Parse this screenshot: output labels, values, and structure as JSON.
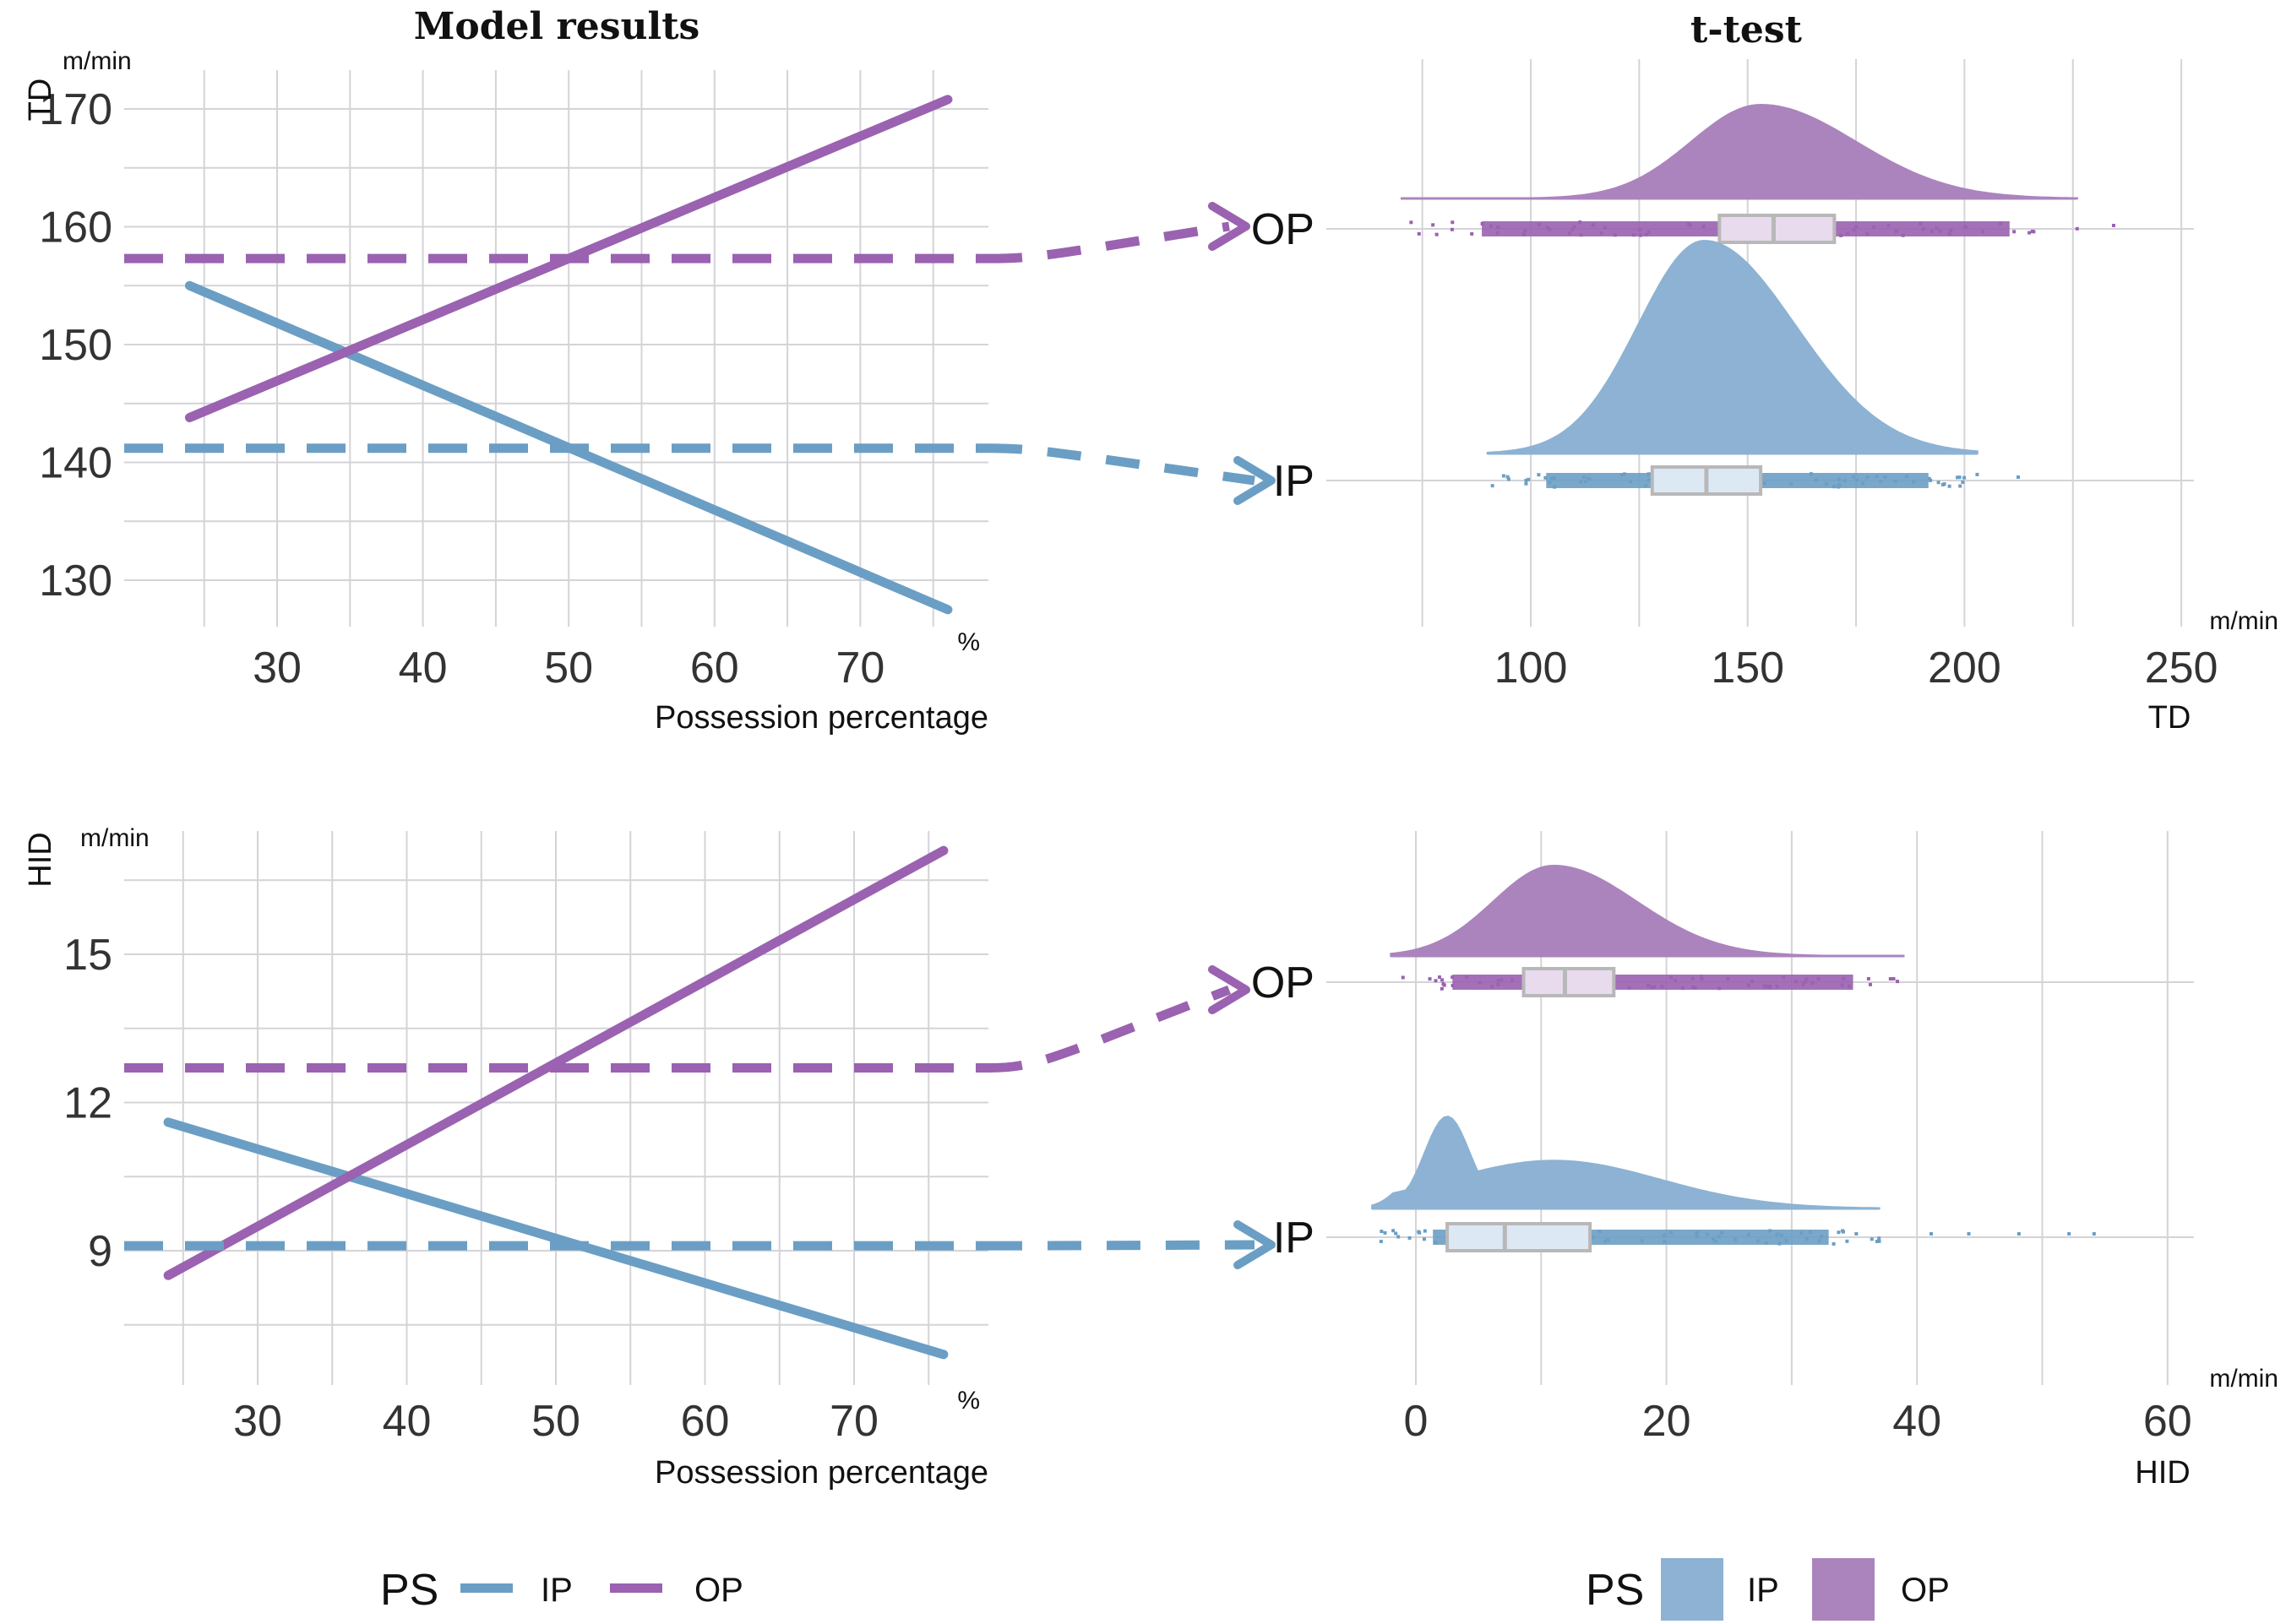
{
  "colors": {
    "IP": "#6b9ec4",
    "OP": "#9a62b0",
    "IP_fill": "#8db2d3",
    "OP_fill": "#ab84bd",
    "IP_box": "#dce8f4",
    "OP_box": "#e8dbee",
    "box_stroke": "#b8b8b8",
    "grid": "#d4d4d8"
  },
  "titles": {
    "left": "Model results",
    "right": "t-test"
  },
  "chart_data": [
    {
      "id": "td-model",
      "type": "line",
      "title": "Model results",
      "xlabel": "Possession percentage",
      "xunit": "%",
      "ylabel": "TD",
      "yunit": "m/min",
      "xlim": [
        22,
        77
      ],
      "ylim": [
        126.5,
        173.3
      ],
      "xticks": [
        30,
        40,
        50,
        60,
        70
      ],
      "yticks": [
        130,
        140,
        150,
        160,
        170
      ],
      "grid": true,
      "series": [
        {
          "name": "IP",
          "style": "solid",
          "x": [
            24,
            76
          ],
          "y": [
            155,
            127.5
          ]
        },
        {
          "name": "OP",
          "style": "solid",
          "x": [
            24,
            76
          ],
          "y": [
            143.8,
            170.8
          ]
        },
        {
          "name": "IP mean",
          "style": "dashed",
          "x": [
            22,
            77
          ],
          "y": [
            141.2,
            141.2
          ]
        },
        {
          "name": "OP mean",
          "style": "dashed",
          "x": [
            22,
            77
          ],
          "y": [
            157.3,
            157.3
          ]
        }
      ]
    },
    {
      "id": "td-ttest",
      "type": "raincloud",
      "title": "t-test",
      "xlabel": "TD",
      "xunit": "m/min",
      "xlim": [
        70,
        255
      ],
      "xticks": [
        100,
        150,
        200,
        250
      ],
      "grid": true,
      "categories": [
        "OP",
        "IP"
      ],
      "groups": [
        {
          "name": "OP",
          "q1": 143.5,
          "median": 156,
          "q3": 170,
          "min": 70,
          "max": 226,
          "peak": 153,
          "sd": 20,
          "outliers": [
            234
          ]
        },
        {
          "name": "IP",
          "q1": 128,
          "median": 140.5,
          "q3": 153,
          "min": 90,
          "max": 203,
          "peak": 140,
          "sd": 19,
          "outliers": [
            212
          ]
        }
      ]
    },
    {
      "id": "hid-model",
      "type": "line",
      "title": "",
      "xlabel": "Possession percentage",
      "xunit": "%",
      "ylabel": "HID",
      "yunit": "m/min",
      "xlim": [
        22,
        77
      ],
      "ylim": [
        6.2,
        17.8
      ],
      "xticks": [
        30,
        40,
        50,
        60,
        70
      ],
      "yticks": [
        9,
        12,
        15
      ],
      "grid": true,
      "series": [
        {
          "name": "IP",
          "style": "solid",
          "x": [
            24,
            76
          ],
          "y": [
            11.6,
            6.9
          ]
        },
        {
          "name": "OP",
          "style": "solid",
          "x": [
            24,
            76
          ],
          "y": [
            8.5,
            17.1
          ]
        },
        {
          "name": "IP mean",
          "style": "dashed",
          "x": [
            22,
            77
          ],
          "y": [
            9.1,
            9.1
          ]
        },
        {
          "name": "OP mean",
          "style": "dashed",
          "x": [
            22,
            77
          ],
          "y": [
            12.7,
            12.7
          ]
        }
      ]
    },
    {
      "id": "hid-ttest",
      "type": "raincloud",
      "title": "",
      "xlabel": "HID",
      "xunit": "m/min",
      "xlim": [
        -5,
        62
      ],
      "xticks": [
        0,
        20,
        40,
        60
      ],
      "grid": true,
      "categories": [
        "OP",
        "IP"
      ],
      "groups": [
        {
          "name": "OP",
          "q1": 8.6,
          "median": 11.9,
          "q3": 15.8,
          "min": -2,
          "max": 39,
          "peak": 11,
          "sd": 6,
          "outliers": [
            32,
            34,
            36,
            38
          ]
        },
        {
          "name": "IP",
          "q1": 2.5,
          "median": 7.1,
          "q3": 13.9,
          "min": -3.5,
          "max": 37,
          "peak": 2.5,
          "sd": 8,
          "outliers": [
            41,
            44,
            48,
            52,
            54
          ]
        }
      ]
    }
  ],
  "legend_left": {
    "title": "PS",
    "items": [
      "IP",
      "OP"
    ]
  },
  "legend_right": {
    "title": "PS",
    "items": [
      "IP",
      "OP"
    ]
  }
}
